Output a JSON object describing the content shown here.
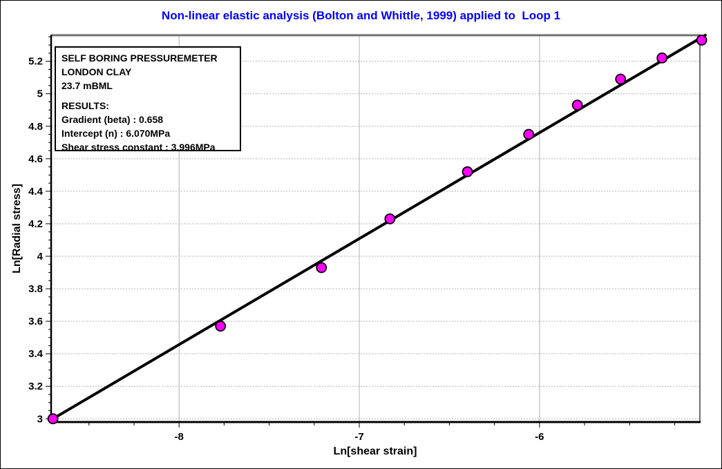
{
  "page": {
    "background": "#ffffff",
    "border_color": "#000000"
  },
  "chart_data": {
    "type": "scatter",
    "title": "Non-linear elastic analysis (Bolton and Whittle, 1999) applied to  Loop 1",
    "title_color": "#0000ff",
    "xlabel": "Ln[shear strain]",
    "ylabel": "Ln[Radial stress]",
    "xlim": [
      -8.71,
      -5.11
    ],
    "ylim": [
      2.98,
      5.36
    ],
    "x_major_ticks": [
      -8,
      -7,
      -6
    ],
    "x_major_labels": [
      "-8",
      "-7",
      "-6"
    ],
    "x_minor_step": 0.25,
    "y_major_ticks": [
      3,
      3.2,
      3.4,
      3.6,
      3.8,
      4,
      4.2,
      4.4,
      4.6,
      4.8,
      5,
      5.2
    ],
    "y_major_labels": [
      "3",
      "3.2",
      "3.4",
      "3.6",
      "3.8",
      "4",
      "4.2",
      "4.4",
      "4.6",
      "4.8",
      "5",
      "5.2"
    ],
    "y_minor_step": 0.05,
    "grid": true,
    "legend": "none",
    "series": [
      {
        "name": "regression-line",
        "type": "line",
        "color": "#000000",
        "width": 4,
        "points": [
          [
            -8.7,
            3.0
          ],
          [
            -5.08,
            5.36
          ]
        ]
      },
      {
        "name": "data-points",
        "type": "scatter",
        "marker": "circle",
        "marker_fill": "#ff00ff",
        "marker_stroke": "#000000",
        "marker_radius": 7,
        "points": [
          [
            -8.7,
            3.0
          ],
          [
            -7.77,
            3.57
          ],
          [
            -7.21,
            3.93
          ],
          [
            -6.83,
            4.23
          ],
          [
            -6.4,
            4.52
          ],
          [
            -6.06,
            4.75
          ],
          [
            -5.79,
            4.93
          ],
          [
            -5.55,
            5.09
          ],
          [
            -5.32,
            5.22
          ],
          [
            -5.1,
            5.33
          ]
        ]
      }
    ],
    "annotation": {
      "lines": [
        "SELF BORING PRESSUREMETER",
        "LONDON CLAY",
        "23.7 mBML",
        "RESULTS:",
        "Gradient (beta) : 0.658",
        "Intercept (n) : 6.070MPa",
        "Shear stress constant : 3.996MPa"
      ]
    },
    "colors": {
      "grid": "#b0b0b0",
      "frame_top_right": "#707070",
      "axis": "#000000",
      "tick_text": "#000000"
    }
  }
}
